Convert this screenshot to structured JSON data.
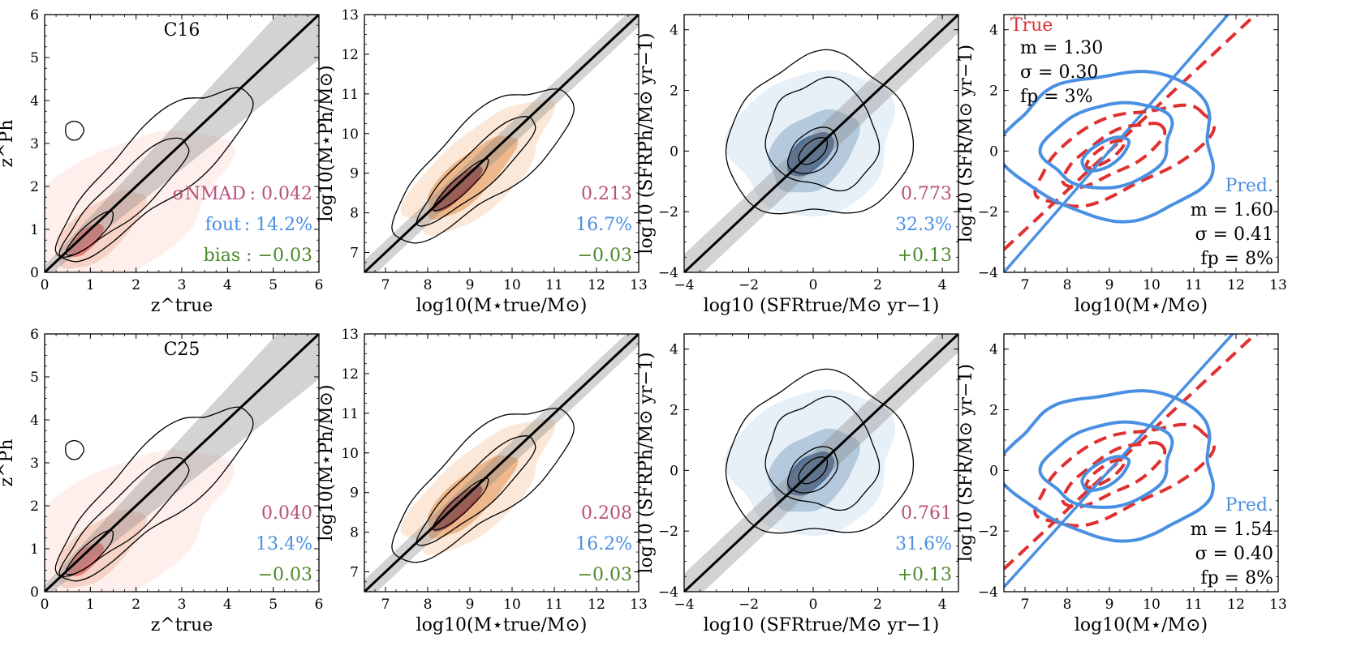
{
  "figure_colors": {
    "pink": "#b9507d",
    "blue": "#4a90e2",
    "green": "#4a8a2c",
    "red": "#e03030",
    "navy": "#1e2f55",
    "fill_z": "#fbe3dc",
    "fill_m": "#e8a46c",
    "fill_sfr": "#3d5e8a"
  },
  "chart_data": [
    {
      "id": "r1c1",
      "type": "heatmap",
      "variant": "z",
      "xlim": [
        0,
        6
      ],
      "ylim": [
        0,
        6
      ],
      "xticks": [
        "0",
        "1",
        "2",
        "3",
        "4",
        "5",
        "6"
      ],
      "yticks": [
        "0",
        "1",
        "2",
        "3",
        "4",
        "5",
        "6"
      ],
      "xlabel": "z^true",
      "ylabel": "z^Ph",
      "label": "C16",
      "band": 0.15,
      "stats": {
        "nmad_label": "σNMAD",
        "nmad": "0.042",
        "fout_label": "fout",
        "fout": "14.2%",
        "bias_label": "bias",
        "bias": "−0.03",
        "text": [
          ": 0.042",
          ": 14.2%",
          "bias : −0.03"
        ]
      }
    },
    {
      "id": "r1c2",
      "type": "heatmap",
      "variant": "m",
      "xlim": [
        6.5,
        13
      ],
      "ylim": [
        6.5,
        13
      ],
      "xticks": [
        "7",
        "8",
        "9",
        "10",
        "11",
        "12",
        "13"
      ],
      "yticks": [
        "7",
        "8",
        "9",
        "10",
        "11",
        "12",
        "13"
      ],
      "xlabel": "log10(M⋆true/M⊙)",
      "ylabel": "log10(M⋆Ph/M⊙)",
      "band": 0.3,
      "stats": {
        "text": [
          "0.213",
          "16.7%",
          "−0.03"
        ]
      }
    },
    {
      "id": "r1c3",
      "type": "heatmap",
      "variant": "sfr",
      "xlim": [
        -4,
        4.5
      ],
      "ylim": [
        -4,
        4.5
      ],
      "xticks": [
        "−4",
        "−2",
        "0",
        "2",
        "4"
      ],
      "yticks": [
        "−4",
        "−2",
        "0",
        "2",
        "4"
      ],
      "xlabel": "log10 (SFRtrue/M⊙ yr−1)",
      "ylabel": "log10 (SFRPh/M⊙ yr−1)",
      "band": 0.6,
      "stats": {
        "text": [
          "0.773",
          "32.3%",
          "+0.13"
        ]
      }
    },
    {
      "id": "r1c4",
      "type": "line",
      "variant": "ms",
      "xlim": [
        6.5,
        13
      ],
      "ylim": [
        -4,
        4.5
      ],
      "xticks": [
        "7",
        "8",
        "9",
        "10",
        "11",
        "12",
        "13"
      ],
      "yticks": [
        "−4",
        "−2",
        "0",
        "2",
        "4"
      ],
      "xlabel": "log10(M⋆/M⊙)",
      "ylabel": "log10 (SFR/M⊙ yr−1)",
      "true": {
        "label": "True",
        "m": "m = 1.30",
        "sigma": "σ = 0.30",
        "fp": "fp = 3%",
        "slope": 1.3
      },
      "pred": {
        "label": "Pred.",
        "m": "m = 1.60",
        "sigma": "σ = 0.41",
        "fp": "fp = 8%",
        "slope": 1.6
      }
    },
    {
      "id": "r2c1",
      "type": "heatmap",
      "variant": "z",
      "xlim": [
        0,
        6
      ],
      "ylim": [
        0,
        6
      ],
      "xticks": [
        "0",
        "1",
        "2",
        "3",
        "4",
        "5",
        "6"
      ],
      "yticks": [
        "0",
        "1",
        "2",
        "3",
        "4",
        "5",
        "6"
      ],
      "xlabel": "z^true",
      "ylabel": "z^Ph",
      "label": "C25",
      "band": 0.15,
      "stats": {
        "text": [
          "0.040",
          "13.4%",
          "−0.03"
        ]
      }
    },
    {
      "id": "r2c2",
      "type": "heatmap",
      "variant": "m",
      "xlim": [
        6.5,
        13
      ],
      "ylim": [
        6.5,
        13
      ],
      "xticks": [
        "7",
        "8",
        "9",
        "10",
        "11",
        "12",
        "13"
      ],
      "yticks": [
        "7",
        "8",
        "9",
        "10",
        "11",
        "12",
        "13"
      ],
      "xlabel": "log10(M⋆true/M⊙)",
      "ylabel": "log10(M⋆Ph/M⊙)",
      "band": 0.3,
      "stats": {
        "text": [
          "0.208",
          "16.2%",
          "−0.03"
        ]
      }
    },
    {
      "id": "r2c3",
      "type": "heatmap",
      "variant": "sfr",
      "xlim": [
        -4,
        4.5
      ],
      "ylim": [
        -4,
        4.5
      ],
      "xticks": [
        "−4",
        "−2",
        "0",
        "2",
        "4"
      ],
      "yticks": [
        "−4",
        "−2",
        "0",
        "2",
        "4"
      ],
      "xlabel": "log10 (SFRtrue/M⊙ yr−1)",
      "ylabel": "log10 (SFRPh/M⊙ yr−1)",
      "band": 0.6,
      "stats": {
        "text": [
          "0.761",
          "31.6%",
          "+0.13"
        ]
      }
    },
    {
      "id": "r2c4",
      "type": "line",
      "variant": "ms",
      "xlim": [
        6.5,
        13
      ],
      "ylim": [
        -4,
        4.5
      ],
      "xticks": [
        "7",
        "8",
        "9",
        "10",
        "11",
        "12",
        "13"
      ],
      "yticks": [
        "−4",
        "−2",
        "0",
        "2",
        "4"
      ],
      "xlabel": "log10(M⋆/M⊙)",
      "ylabel": "log10 (SFR/M⊙ yr−1)",
      "true": {
        "slope": 1.3
      },
      "pred": {
        "label": "Pred.",
        "m": "m = 1.54",
        "sigma": "σ = 0.40",
        "fp": "fp = 8%",
        "slope": 1.54
      }
    }
  ]
}
